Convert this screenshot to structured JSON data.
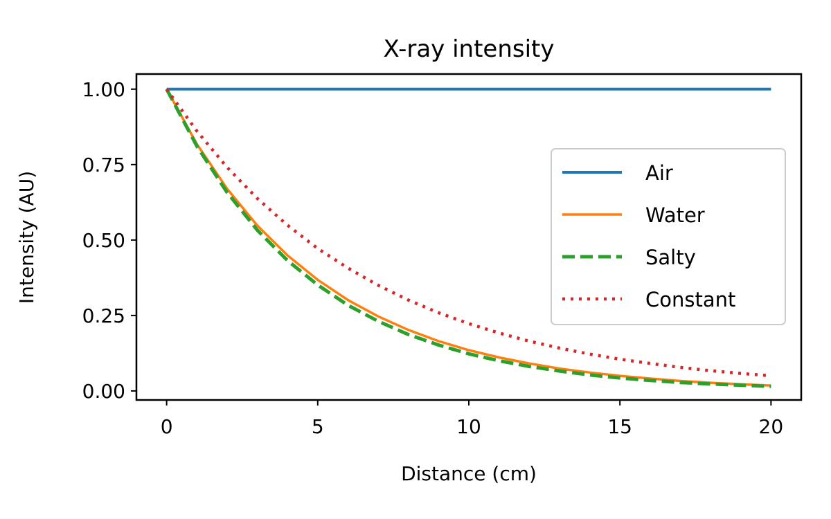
{
  "chart_data": {
    "type": "line",
    "title": "X-ray intensity",
    "xlabel": "Distance (cm)",
    "ylabel": "Intensity (AU)",
    "xlim": [
      -1,
      21
    ],
    "ylim": [
      -0.03,
      1.05
    ],
    "xticks": [
      0,
      5,
      10,
      15,
      20
    ],
    "xtick_labels": [
      "0",
      "5",
      "10",
      "15",
      "20"
    ],
    "yticks": [
      0,
      0.25,
      0.5,
      0.75,
      1.0
    ],
    "ytick_labels": [
      "0.00",
      "0.25",
      "0.50",
      "0.75",
      "1.00"
    ],
    "grid": false,
    "legend": "center-right",
    "x": [
      0,
      1,
      2,
      3,
      4,
      5,
      6,
      7,
      8,
      9,
      10,
      11,
      12,
      13,
      14,
      15,
      16,
      17,
      18,
      19,
      20
    ],
    "series": [
      {
        "name": "Air",
        "color": "#1f77b4",
        "style": "solid",
        "values": [
          1,
          1,
          1,
          1,
          1,
          1,
          1,
          1,
          1,
          1,
          1,
          1,
          1,
          1,
          1,
          1,
          1,
          1,
          1,
          1,
          1
        ]
      },
      {
        "name": "Water",
        "color": "#ff7f0e",
        "style": "solid",
        "values": [
          1.0,
          0.818,
          0.67,
          0.548,
          0.449,
          0.368,
          0.301,
          0.247,
          0.202,
          0.165,
          0.135,
          0.111,
          0.091,
          0.074,
          0.061,
          0.05,
          0.041,
          0.033,
          0.027,
          0.022,
          0.018
        ]
      },
      {
        "name": "Salty",
        "color": "#2ca02c",
        "style": "dashed",
        "values": [
          1.0,
          0.811,
          0.658,
          0.533,
          0.432,
          0.351,
          0.284,
          0.231,
          0.187,
          0.152,
          0.123,
          0.1,
          0.081,
          0.066,
          0.053,
          0.043,
          0.035,
          0.028,
          0.023,
          0.019,
          0.015
        ]
      },
      {
        "name": "Constant",
        "color": "#d62728",
        "style": "dotted",
        "values": [
          1.0,
          0.861,
          0.741,
          0.638,
          0.549,
          0.472,
          0.407,
          0.35,
          0.301,
          0.259,
          0.223,
          0.192,
          0.165,
          0.142,
          0.122,
          0.105,
          0.091,
          0.078,
          0.067,
          0.058,
          0.05
        ]
      }
    ]
  }
}
